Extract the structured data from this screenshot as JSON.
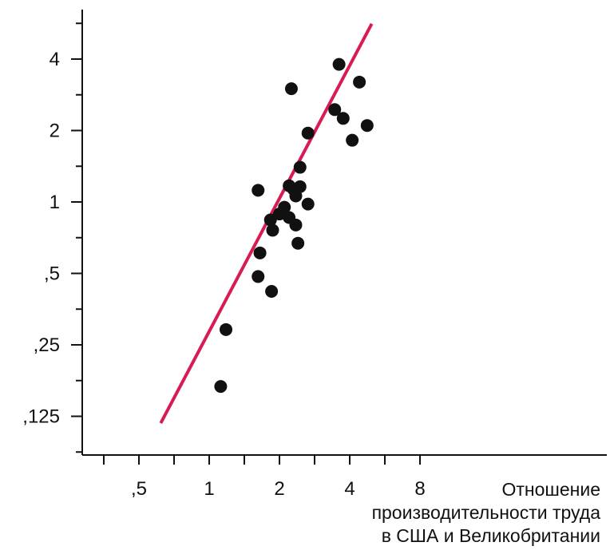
{
  "chart_data": {
    "type": "scatter",
    "title": "",
    "xlabel": [
      "Отношение",
      "производительности труда",
      "в США и Великобритании"
    ],
    "ylabel": "",
    "x_scale": "log2",
    "y_scale": "log2",
    "xlim": [
      0.25,
      40
    ],
    "ylim": [
      0.098,
      6.7
    ],
    "x_ticks": [
      0.5,
      1,
      2,
      4,
      8
    ],
    "x_tick_labels": [
      ",5",
      "1",
      "2",
      "4",
      "8"
    ],
    "y_ticks": [
      0.125,
      0.25,
      0.5,
      1,
      2,
      4
    ],
    "y_tick_labels": [
      ",125",
      ",25",
      ",5",
      "1",
      "2",
      "4"
    ],
    "grid": false,
    "series": [
      {
        "values": [
          {
            "x": 1.12,
            "y": 0.167
          },
          {
            "x": 1.18,
            "y": 0.29
          },
          {
            "x": 1.62,
            "y": 0.485
          },
          {
            "x": 1.65,
            "y": 0.61
          },
          {
            "x": 1.62,
            "y": 1.12
          },
          {
            "x": 1.85,
            "y": 0.42
          },
          {
            "x": 1.83,
            "y": 0.84
          },
          {
            "x": 1.87,
            "y": 0.76
          },
          {
            "x": 2.0,
            "y": 0.89
          },
          {
            "x": 2.1,
            "y": 0.95
          },
          {
            "x": 2.2,
            "y": 0.86
          },
          {
            "x": 2.2,
            "y": 1.17
          },
          {
            "x": 2.3,
            "y": 1.13
          },
          {
            "x": 2.35,
            "y": 1.06
          },
          {
            "x": 2.35,
            "y": 0.8
          },
          {
            "x": 2.4,
            "y": 0.67
          },
          {
            "x": 2.45,
            "y": 1.16
          },
          {
            "x": 2.45,
            "y": 1.4
          },
          {
            "x": 2.65,
            "y": 0.98
          },
          {
            "x": 2.65,
            "y": 1.95
          },
          {
            "x": 2.25,
            "y": 3.0
          },
          {
            "x": 3.45,
            "y": 2.45
          },
          {
            "x": 3.6,
            "y": 3.8
          },
          {
            "x": 3.75,
            "y": 2.25
          },
          {
            "x": 4.1,
            "y": 1.82
          },
          {
            "x": 4.4,
            "y": 3.2
          },
          {
            "x": 4.75,
            "y": 2.1
          }
        ]
      }
    ],
    "fit_line": {
      "x": [
        0.62,
        4.97
      ],
      "y": [
        0.117,
        5.63
      ],
      "color": "#d81b53"
    },
    "marker_color": "#111111"
  }
}
